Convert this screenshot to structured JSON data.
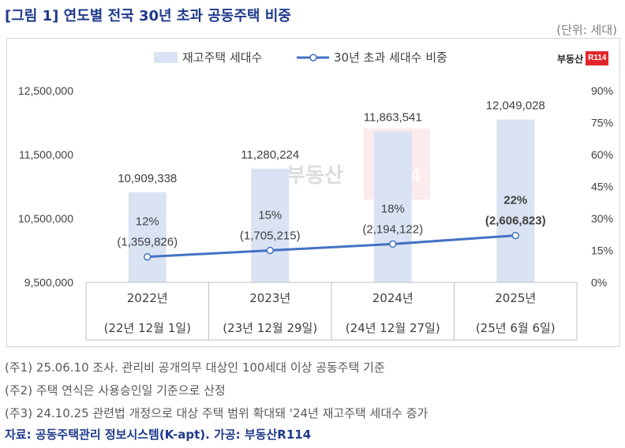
{
  "header": {
    "title": "[그림 1] 연도별 전국 30년 초과 공동주택 비중",
    "unit": "(단위: 세대)"
  },
  "logo": {
    "text": "부동산",
    "badge": "R114"
  },
  "chart_data": {
    "type": "bar+line",
    "categories": [
      "2022년",
      "2023년",
      "2024년",
      "2025년"
    ],
    "subcategories": [
      "(22년 12월 1일)",
      "(23년 12월 29일)",
      "(24년 12월 27일)",
      "(25년 6월 6일)"
    ],
    "series": [
      {
        "name": "재고주택 세대수",
        "type": "bar",
        "axis": "left",
        "values": [
          10909338,
          11280224,
          11863541,
          12049028
        ],
        "labels": [
          "10,909,338",
          "11,280,224",
          "11,863,541",
          "12,049,028"
        ],
        "color": "#dae3f3"
      },
      {
        "name": "30년 초과 세대수 비중",
        "type": "line",
        "axis": "right",
        "values": [
          12,
          15,
          18,
          22
        ],
        "labels": [
          "12%",
          "15%",
          "18%",
          "22%"
        ],
        "counts": [
          "(1,359,826)",
          "(1,705,215)",
          "(2,194,122)",
          "(2,606,823)"
        ],
        "color": "#4472c4"
      }
    ],
    "left_axis": {
      "ylim": [
        9500000,
        12500000
      ],
      "ticks": [
        9500000,
        10500000,
        11500000,
        12500000
      ],
      "tick_labels": [
        "9,500,000",
        "10,500,000",
        "11,500,000",
        "12,500,000"
      ]
    },
    "right_axis": {
      "ylim": [
        0,
        90
      ],
      "ticks": [
        0,
        15,
        30,
        45,
        60,
        75,
        90
      ],
      "tick_labels": [
        "0%",
        "15%",
        "30%",
        "45%",
        "60%",
        "75%",
        "90%"
      ]
    },
    "legend_position": "top",
    "grid": false,
    "bold_last_point": true
  },
  "notes": [
    "(주1) 25.06.10 조사. 관리비 공개의무 대상인 100세대 이상 공동주택 기준",
    "(주2) 주택 연식은 사용승인일 기준으로 산정",
    "(주3) 24.10.25 관련법 개정으로 대상 주택 범위 확대돼 '24년 재고주택 세대수 증가"
  ],
  "source": "자료: 공동주택관리 정보시스템(K-apt). 가공: 부동산R114"
}
